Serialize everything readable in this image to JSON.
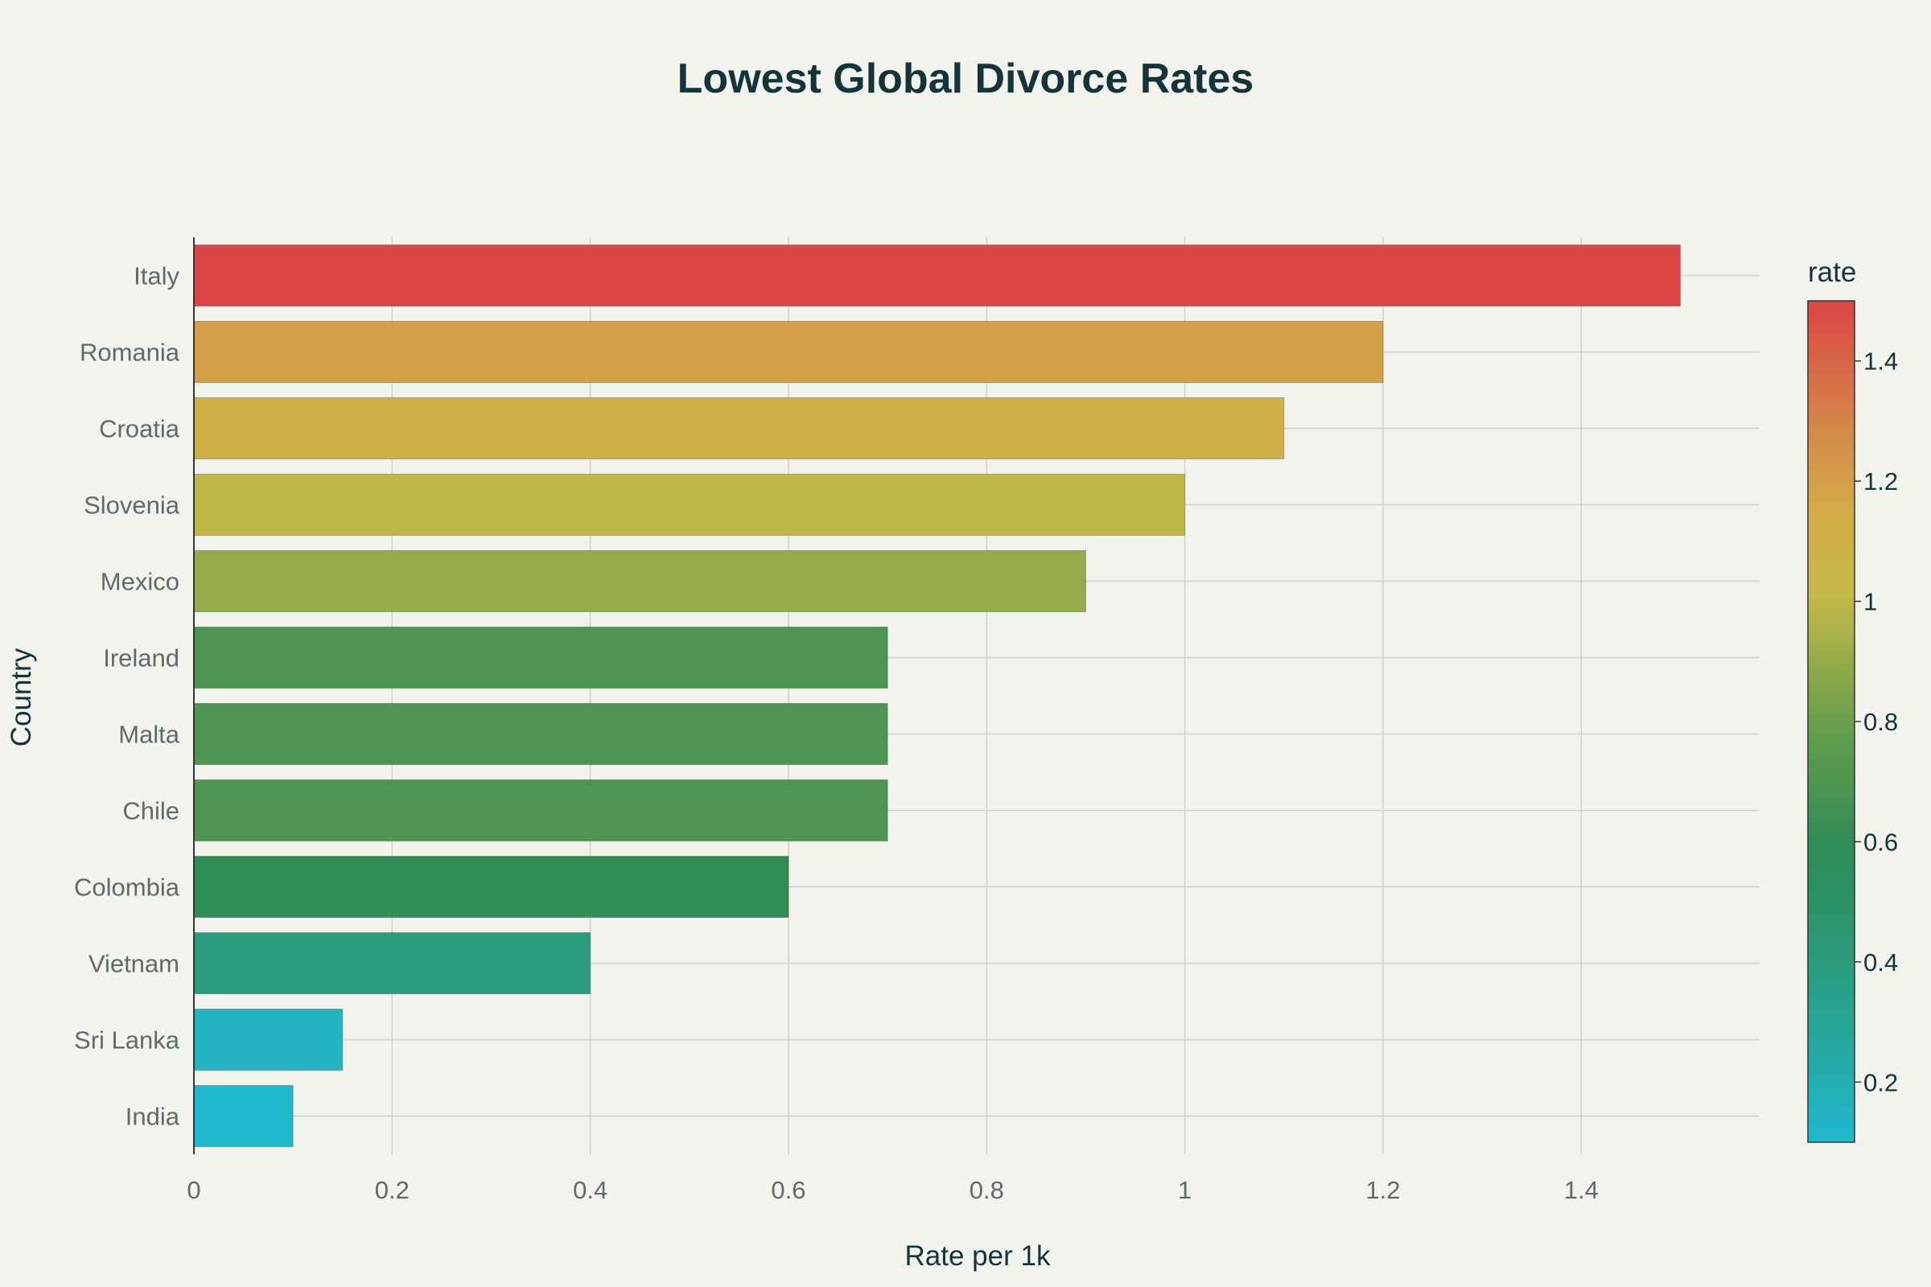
{
  "chart_data": {
    "type": "bar",
    "orientation": "horizontal",
    "title": "Lowest Global Divorce Rates",
    "xlabel": "Rate per 1k",
    "ylabel": "Country",
    "categories": [
      "Italy",
      "Romania",
      "Croatia",
      "Slovenia",
      "Mexico",
      "Ireland",
      "Malta",
      "Chile",
      "Colombia",
      "Vietnam",
      "Sri Lanka",
      "India"
    ],
    "values": [
      1.5,
      1.2,
      1.1,
      1.0,
      0.9,
      0.7,
      0.7,
      0.7,
      0.6,
      0.4,
      0.15,
      0.1
    ],
    "xlim": [
      0,
      1.58
    ],
    "xticks": [
      0,
      0.2,
      0.4,
      0.6,
      0.8,
      1,
      1.2,
      1.4
    ],
    "xtick_labels": [
      "0",
      "0.2",
      "0.4",
      "0.6",
      "0.8",
      "1",
      "1.2",
      "1.4"
    ],
    "grid": true,
    "colorbar": {
      "title": "rate",
      "range": [
        0.1,
        1.5
      ],
      "ticks": [
        0.2,
        0.4,
        0.6,
        0.8,
        1,
        1.2,
        1.4
      ],
      "tick_labels": [
        "0.2",
        "0.4",
        "0.6",
        "0.8",
        "1",
        "1.2",
        "1.4"
      ],
      "colorscale": [
        [
          0.0,
          "#1fb8cd"
        ],
        [
          0.2,
          "#2a9d80"
        ],
        [
          0.35,
          "#2e8b57"
        ],
        [
          0.5,
          "#6a9f4c"
        ],
        [
          0.65,
          "#c5b94a"
        ],
        [
          0.75,
          "#d4ab48"
        ],
        [
          0.85,
          "#d4884a"
        ],
        [
          1.0,
          "#db4545"
        ]
      ]
    }
  }
}
